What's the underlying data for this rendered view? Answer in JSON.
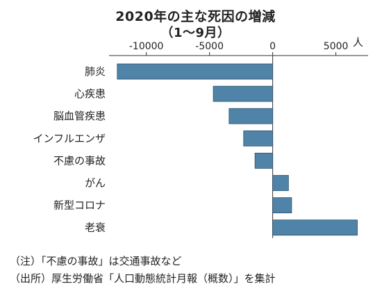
{
  "header": {
    "title_line1": "2020年の主な死因の増減",
    "title_line2": "（1～9月）",
    "unit": "人"
  },
  "notes": {
    "note1": "（注）「不慮の事故」は交通事故など",
    "note2": "（出所）厚生労働省「人口動態統計月報（概数）」を集計"
  },
  "colors": {
    "bar": "#4f83a8",
    "bar_stroke": "#2e4f68",
    "axis": "#333333"
  },
  "chart_data": {
    "type": "bar",
    "orientation": "horizontal",
    "categories": [
      "肺炎",
      "心疾患",
      "脳血管疾患",
      "インフルエンザ",
      "不慮の事故",
      "がん",
      "新型コロナ",
      "老衰"
    ],
    "values": [
      -12300,
      -4700,
      -3450,
      -2300,
      -1400,
      1250,
      1500,
      6700
    ],
    "xticks": [
      -10000,
      -5000,
      0,
      5000
    ],
    "tick_labels": [
      "-10000",
      "-5000",
      "0",
      "5000"
    ],
    "xlim": [
      -12950,
      7550
    ],
    "title": "2020年の主な死因の増減",
    "xlabel": "",
    "ylabel": ""
  }
}
